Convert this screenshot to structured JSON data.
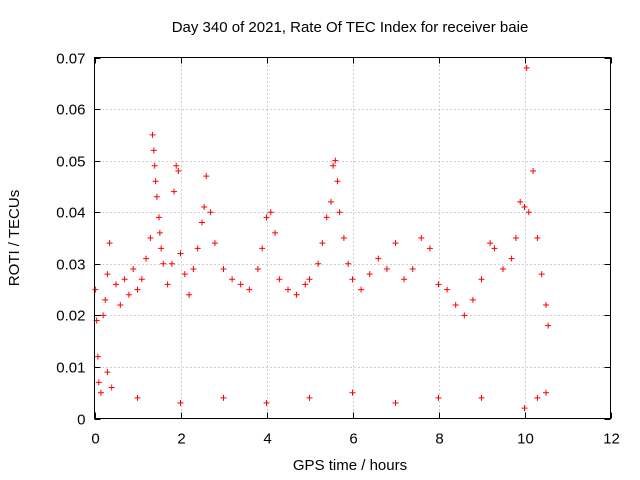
{
  "chart_data": {
    "type": "scatter",
    "title": "Day 340 of 2021, Rate Of TEC Index for receiver baie",
    "xlabel": "GPS time / hours",
    "ylabel": "ROTI / TECUs",
    "xlim": [
      0,
      12
    ],
    "ylim": [
      0,
      0.07
    ],
    "xticks": [
      "0",
      "2",
      "4",
      "6",
      "8",
      "10",
      "12"
    ],
    "yticks": [
      "0",
      "0.01",
      "0.02",
      "0.03",
      "0.04",
      "0.05",
      "0.06",
      "0.07"
    ],
    "grid": true,
    "marker": "plus",
    "color": "#ff0000",
    "x_data_range": [
      0,
      10.6
    ],
    "series": [
      {
        "points": [
          [
            0.02,
            0.025
          ],
          [
            0.05,
            0.019
          ],
          [
            0.08,
            0.012
          ],
          [
            0.1,
            0.007
          ],
          [
            0.15,
            0.005
          ],
          [
            0.2,
            0.02
          ],
          [
            0.25,
            0.023
          ],
          [
            0.3,
            0.028
          ],
          [
            0.3,
            0.009
          ],
          [
            0.35,
            0.034
          ],
          [
            0.4,
            0.006
          ],
          [
            0.5,
            0.026
          ],
          [
            0.6,
            0.022
          ],
          [
            0.7,
            0.027
          ],
          [
            0.8,
            0.024
          ],
          [
            0.9,
            0.029
          ],
          [
            1.0,
            0.025
          ],
          [
            1.1,
            0.027
          ],
          [
            1.2,
            0.031
          ],
          [
            1.3,
            0.035
          ],
          [
            1.35,
            0.055
          ],
          [
            1.38,
            0.052
          ],
          [
            1.4,
            0.049
          ],
          [
            1.42,
            0.046
          ],
          [
            1.45,
            0.043
          ],
          [
            1.5,
            0.039
          ],
          [
            1.52,
            0.036
          ],
          [
            1.55,
            0.033
          ],
          [
            1.6,
            0.03
          ],
          [
            1.7,
            0.026
          ],
          [
            1.8,
            0.03
          ],
          [
            1.85,
            0.044
          ],
          [
            1.9,
            0.049
          ],
          [
            1.95,
            0.048
          ],
          [
            2.0,
            0.032
          ],
          [
            2.1,
            0.028
          ],
          [
            2.2,
            0.024
          ],
          [
            2.3,
            0.029
          ],
          [
            2.4,
            0.033
          ],
          [
            2.5,
            0.038
          ],
          [
            2.55,
            0.041
          ],
          [
            2.6,
            0.047
          ],
          [
            2.7,
            0.04
          ],
          [
            2.8,
            0.034
          ],
          [
            3.0,
            0.029
          ],
          [
            3.2,
            0.027
          ],
          [
            3.4,
            0.026
          ],
          [
            3.6,
            0.025
          ],
          [
            3.8,
            0.029
          ],
          [
            3.9,
            0.033
          ],
          [
            4.0,
            0.039
          ],
          [
            4.1,
            0.04
          ],
          [
            4.2,
            0.036
          ],
          [
            4.3,
            0.027
          ],
          [
            4.5,
            0.025
          ],
          [
            4.7,
            0.024
          ],
          [
            4.9,
            0.026
          ],
          [
            5.0,
            0.027
          ],
          [
            5.2,
            0.03
          ],
          [
            5.3,
            0.034
          ],
          [
            5.4,
            0.039
          ],
          [
            5.5,
            0.042
          ],
          [
            5.55,
            0.049
          ],
          [
            5.6,
            0.05
          ],
          [
            5.65,
            0.046
          ],
          [
            5.7,
            0.04
          ],
          [
            5.8,
            0.035
          ],
          [
            5.9,
            0.03
          ],
          [
            6.0,
            0.027
          ],
          [
            6.2,
            0.025
          ],
          [
            6.4,
            0.028
          ],
          [
            6.6,
            0.031
          ],
          [
            6.8,
            0.029
          ],
          [
            7.0,
            0.034
          ],
          [
            7.2,
            0.027
          ],
          [
            7.4,
            0.029
          ],
          [
            7.6,
            0.035
          ],
          [
            7.8,
            0.033
          ],
          [
            8.0,
            0.026
          ],
          [
            8.2,
            0.025
          ],
          [
            8.4,
            0.022
          ],
          [
            8.6,
            0.02
          ],
          [
            8.8,
            0.023
          ],
          [
            9.0,
            0.027
          ],
          [
            9.2,
            0.034
          ],
          [
            9.3,
            0.033
          ],
          [
            9.5,
            0.029
          ],
          [
            9.7,
            0.031
          ],
          [
            9.8,
            0.035
          ],
          [
            9.9,
            0.042
          ],
          [
            10.0,
            0.041
          ],
          [
            10.05,
            0.068
          ],
          [
            10.1,
            0.04
          ],
          [
            10.2,
            0.048
          ],
          [
            10.3,
            0.035
          ],
          [
            10.4,
            0.028
          ],
          [
            10.5,
            0.022
          ],
          [
            10.55,
            0.018
          ],
          [
            10.0,
            0.002
          ],
          [
            10.3,
            0.004
          ],
          [
            10.5,
            0.005
          ],
          [
            7.0,
            0.003
          ],
          [
            5.0,
            0.004
          ],
          [
            4.0,
            0.003
          ],
          [
            3.0,
            0.004
          ],
          [
            2.0,
            0.003
          ],
          [
            1.0,
            0.004
          ],
          [
            9.0,
            0.004
          ],
          [
            8.0,
            0.004
          ],
          [
            6.0,
            0.005
          ]
        ]
      }
    ]
  }
}
